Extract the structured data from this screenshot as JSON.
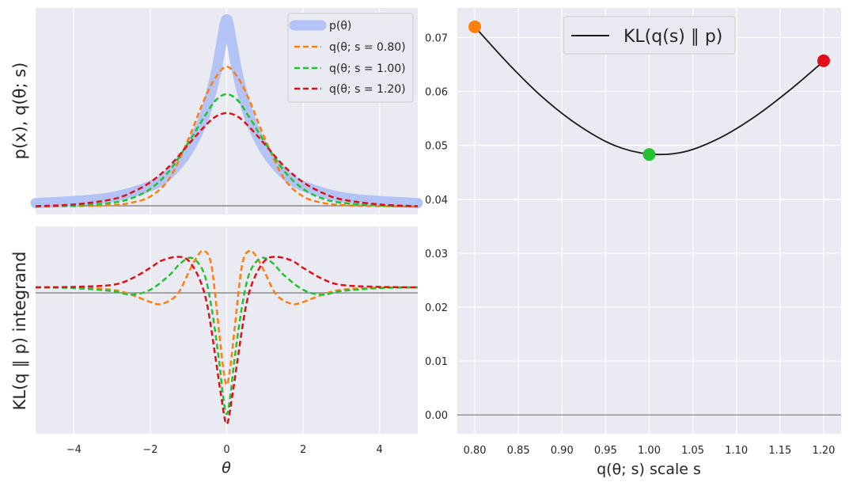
{
  "chart_data": [
    {
      "type": "line",
      "ylabel": "p(x), q(θ; s)",
      "xlim": [
        -5,
        5
      ],
      "grid": true,
      "legend_position": "top-right",
      "series": [
        {
          "name": "p(θ)",
          "color": "#b4c3f5",
          "style": "solid",
          "line": "thick",
          "x": [
            -5,
            -4,
            -3,
            -2,
            -1.5,
            -1,
            -0.6,
            -0.3,
            -0.15,
            0,
            0.15,
            0.3,
            0.6,
            1,
            1.5,
            2,
            3,
            4,
            5
          ],
          "y": [
            0.02,
            0.031,
            0.052,
            0.11,
            0.175,
            0.3,
            0.47,
            0.69,
            0.85,
            0.99,
            0.85,
            0.69,
            0.47,
            0.3,
            0.175,
            0.11,
            0.052,
            0.031,
            0.02
          ]
        },
        {
          "name": "q(θ; s = 0.80)",
          "color": "#ff7f0e",
          "style": "dashed",
          "x": [
            -5,
            -4,
            -3,
            -2.5,
            -2,
            -1.5,
            -1,
            -0.6,
            -0.3,
            0,
            0.3,
            0.6,
            1,
            1.5,
            2,
            2.5,
            3,
            4,
            5
          ],
          "y": [
            0.002,
            0.004,
            0.01,
            0.022,
            0.055,
            0.15,
            0.36,
            0.56,
            0.68,
            0.74,
            0.68,
            0.56,
            0.36,
            0.15,
            0.055,
            0.022,
            0.01,
            0.004,
            0.002
          ]
        },
        {
          "name": "q(θ; s = 1.00)",
          "color": "#22c233",
          "style": "dashed",
          "x": [
            -5,
            -4,
            -3,
            -2.5,
            -2,
            -1.5,
            -1,
            -0.6,
            -0.3,
            0,
            0.3,
            0.6,
            1,
            1.5,
            2,
            2.5,
            3,
            4,
            5
          ],
          "y": [
            0.003,
            0.007,
            0.022,
            0.045,
            0.095,
            0.19,
            0.34,
            0.47,
            0.56,
            0.595,
            0.56,
            0.47,
            0.34,
            0.19,
            0.095,
            0.045,
            0.022,
            0.007,
            0.003
          ]
        },
        {
          "name": "q(θ; s = 1.20)",
          "color": "#e01018",
          "style": "dashed",
          "x": [
            -5,
            -4,
            -3,
            -2.5,
            -2,
            -1.5,
            -1,
            -0.6,
            -0.3,
            0,
            0.3,
            0.6,
            1,
            1.5,
            2,
            2.5,
            3,
            4,
            5
          ],
          "y": [
            0.004,
            0.013,
            0.04,
            0.075,
            0.13,
            0.215,
            0.33,
            0.42,
            0.475,
            0.495,
            0.475,
            0.42,
            0.33,
            0.215,
            0.13,
            0.075,
            0.04,
            0.013,
            0.004
          ]
        }
      ]
    },
    {
      "type": "line",
      "xlabel": "θ",
      "ylabel": "KL(q ∥ p) integrand",
      "xlim": [
        -5,
        5
      ],
      "xticks": [
        -4,
        -2,
        0,
        2,
        4
      ],
      "grid": true,
      "series": [
        {
          "name": "s = 0.80",
          "color": "#ff7f0e",
          "style": "dashed",
          "x": [
            -5,
            -4,
            -3,
            -2.5,
            -2,
            -1.7,
            -1.3,
            -1,
            -0.8,
            -0.6,
            -0.4,
            -0.2,
            -0.1,
            0,
            0.1,
            0.2,
            0.4,
            0.6,
            0.8,
            1,
            1.3,
            1.7,
            2,
            2.5,
            3,
            4,
            5
          ],
          "y": [
            0,
            -0.001,
            -0.01,
            -0.03,
            -0.06,
            -0.068,
            -0.03,
            0.06,
            0.12,
            0.15,
            0.09,
            -0.18,
            -0.32,
            -0.4,
            -0.32,
            -0.18,
            0.09,
            0.15,
            0.12,
            0.06,
            -0.03,
            -0.068,
            -0.06,
            -0.03,
            -0.01,
            -0.001,
            0
          ]
        },
        {
          "name": "s = 1.00",
          "color": "#22c233",
          "style": "dashed",
          "x": [
            -5,
            -4,
            -3,
            -2.5,
            -2,
            -1.5,
            -1.2,
            -0.9,
            -0.6,
            -0.4,
            -0.2,
            -0.1,
            0,
            0.1,
            0.2,
            0.4,
            0.6,
            0.9,
            1.2,
            1.5,
            2,
            2.5,
            3,
            4,
            5
          ],
          "y": [
            0,
            -0.003,
            -0.015,
            -0.03,
            -0.01,
            0.05,
            0.1,
            0.12,
            0.06,
            -0.08,
            -0.3,
            -0.44,
            -0.52,
            -0.44,
            -0.3,
            -0.08,
            0.06,
            0.12,
            0.1,
            0.05,
            -0.01,
            -0.03,
            -0.015,
            -0.003,
            0
          ]
        },
        {
          "name": "s = 1.20",
          "color": "#e01018",
          "style": "dashed",
          "x": [
            -5,
            -4,
            -3,
            -2.5,
            -2,
            -1.7,
            -1.3,
            -1,
            -0.7,
            -0.5,
            -0.3,
            -0.15,
            0,
            0.15,
            0.3,
            0.5,
            0.7,
            1,
            1.3,
            1.7,
            2,
            2.5,
            3,
            4,
            5
          ],
          "y": [
            0,
            0.002,
            0.01,
            0.035,
            0.08,
            0.11,
            0.125,
            0.11,
            0.03,
            -0.08,
            -0.28,
            -0.44,
            -0.56,
            -0.44,
            -0.28,
            -0.08,
            0.03,
            0.11,
            0.125,
            0.11,
            0.08,
            0.035,
            0.01,
            0.002,
            0
          ]
        }
      ]
    },
    {
      "type": "line",
      "xlabel": "q(θ; s) scale s",
      "xlim": [
        0.78,
        1.22
      ],
      "ylim": [
        -0.0035,
        0.0755
      ],
      "xticks": [
        "0.80",
        "0.85",
        "0.90",
        "0.95",
        "1.00",
        "1.05",
        "1.10",
        "1.15",
        "1.20"
      ],
      "yticks": [
        "0.00",
        "0.01",
        "0.02",
        "0.03",
        "0.04",
        "0.05",
        "0.06",
        "0.07"
      ],
      "grid": true,
      "legend_position": "top-center",
      "series": [
        {
          "name": "KL(q(s) ∥ p)",
          "color": "#1a1a1a",
          "style": "solid",
          "x": [
            0.8,
            0.84,
            0.88,
            0.92,
            0.96,
            1.0,
            1.04,
            1.08,
            1.12,
            1.16,
            1.2
          ],
          "y": [
            0.072,
            0.0649,
            0.0586,
            0.0536,
            0.05,
            0.0484,
            0.0488,
            0.0513,
            0.0552,
            0.0601,
            0.0656
          ]
        }
      ],
      "markers": [
        {
          "x": 0.8,
          "y": 0.072,
          "color": "#ff7f0e"
        },
        {
          "x": 1.0,
          "y": 0.0483,
          "color": "#22c233"
        },
        {
          "x": 1.2,
          "y": 0.0657,
          "color": "#e01018"
        }
      ]
    }
  ]
}
